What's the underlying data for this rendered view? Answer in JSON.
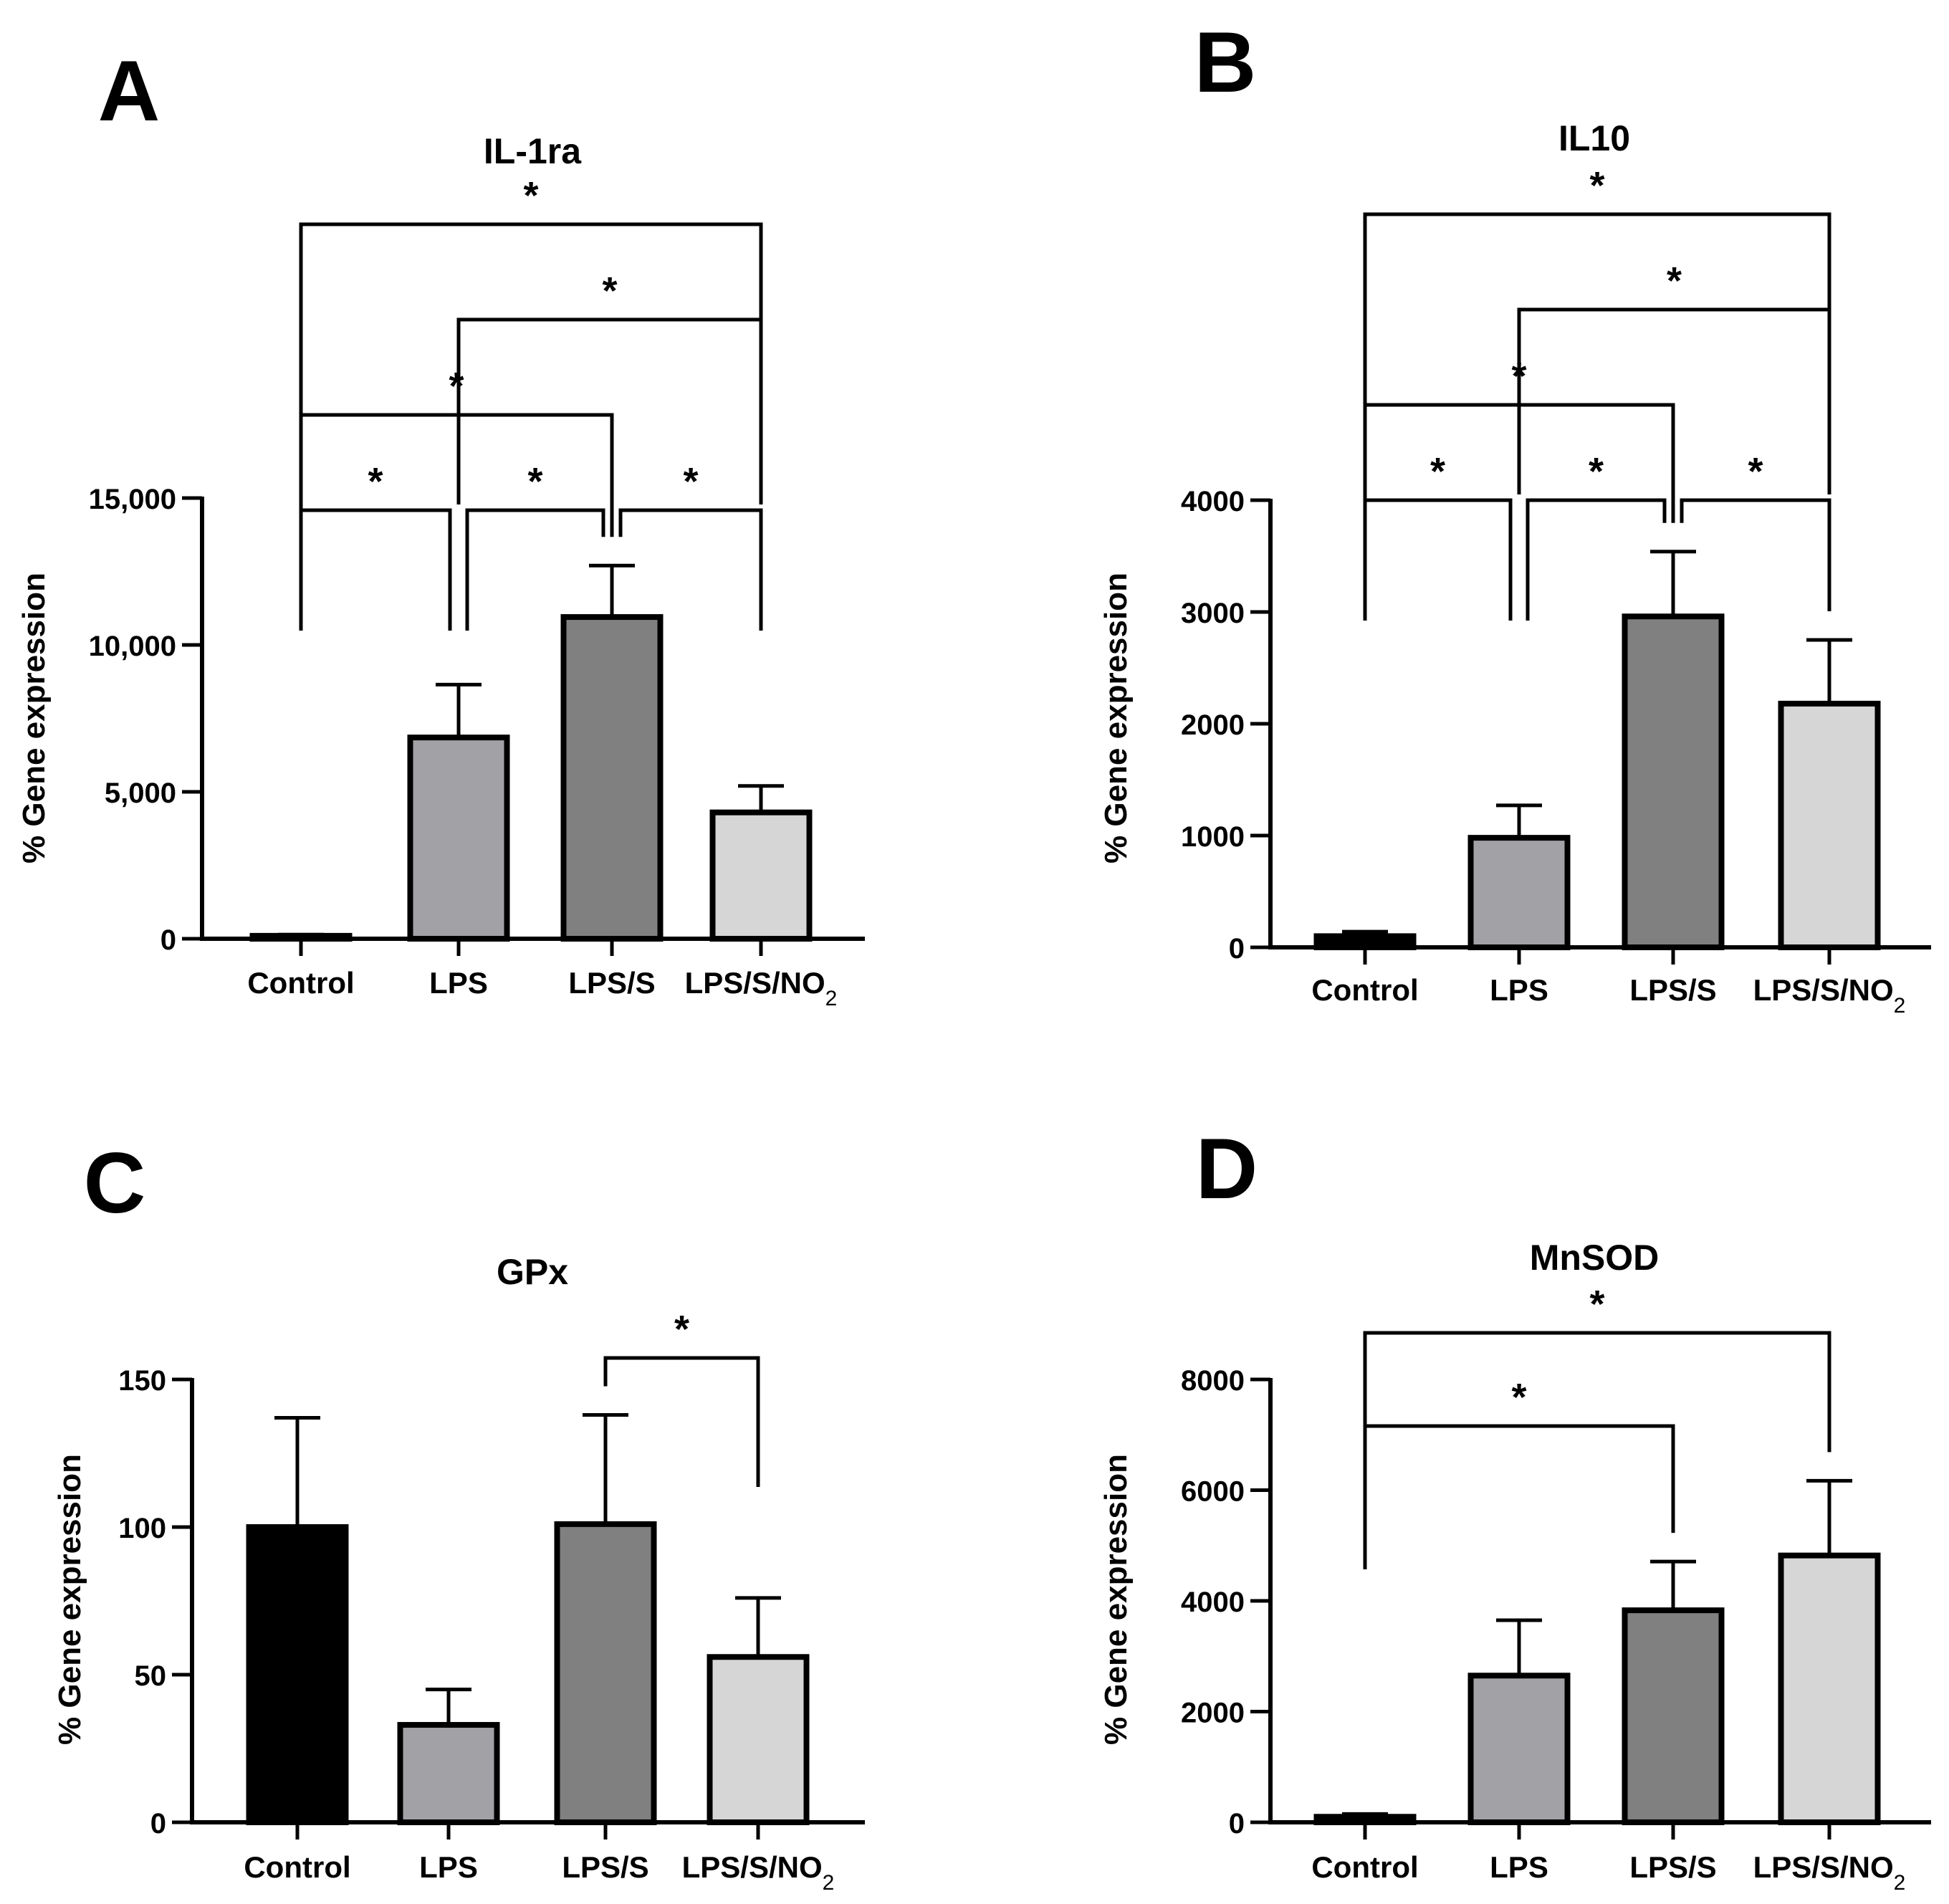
{
  "chart_data": [
    {
      "type": "bar",
      "panel_letter": "A",
      "title": "IL-1ra",
      "ylabel": "% Gene expression",
      "categories": [
        "Control",
        "LPS",
        "LPS/S",
        "LPS/S/NO2"
      ],
      "values": [
        100,
        6850,
        10950,
        4300
      ],
      "errors": [
        40,
        1800,
        1750,
        900
      ],
      "ylim": [
        0,
        15000
      ],
      "yticks": [
        0,
        5000,
        10000,
        15000
      ],
      "ytick_labels": [
        "0",
        "5,000",
        "10,000",
        "15,000"
      ],
      "bar_colors": [
        "#000000",
        "#a2a2a6",
        "#808080",
        "#d6d6d6"
      ],
      "significance": [
        {
          "from": 0,
          "to": 1,
          "label": "*"
        },
        {
          "from": 1,
          "to": 2,
          "label": "*"
        },
        {
          "from": 2,
          "to": 3,
          "label": "*"
        },
        {
          "from": 0,
          "to": 2,
          "label": "*"
        },
        {
          "from": 1,
          "to": 3,
          "label": "*"
        },
        {
          "from": 0,
          "to": 3,
          "label": "*"
        }
      ]
    },
    {
      "type": "bar",
      "panel_letter": "B",
      "title": "IL10",
      "ylabel": "% Gene expression",
      "categories": [
        "Control",
        "LPS",
        "LPS/S",
        "LPS/S/NO2"
      ],
      "values": [
        100,
        980,
        2960,
        2180
      ],
      "errors": [
        40,
        290,
        580,
        570
      ],
      "ylim": [
        0,
        4000
      ],
      "yticks": [
        0,
        1000,
        2000,
        3000,
        4000
      ],
      "ytick_labels": [
        "0",
        "1000",
        "2000",
        "3000",
        "4000"
      ],
      "bar_colors": [
        "#000000",
        "#a2a2a6",
        "#808080",
        "#d6d6d6"
      ],
      "significance": [
        {
          "from": 0,
          "to": 1,
          "label": "*"
        },
        {
          "from": 1,
          "to": 2,
          "label": "*"
        },
        {
          "from": 2,
          "to": 3,
          "label": "*"
        },
        {
          "from": 0,
          "to": 2,
          "label": "*"
        },
        {
          "from": 1,
          "to": 3,
          "label": "*"
        },
        {
          "from": 0,
          "to": 3,
          "label": "*"
        }
      ]
    },
    {
      "type": "bar",
      "panel_letter": "C",
      "title": "GPx",
      "ylabel": "% Gene expression",
      "categories": [
        "Control",
        "LPS",
        "LPS/S",
        "LPS/S/NO2"
      ],
      "values": [
        100,
        33,
        101,
        56
      ],
      "errors": [
        37,
        12,
        37,
        20
      ],
      "ylim": [
        0,
        150
      ],
      "yticks": [
        0,
        50,
        100,
        150
      ],
      "ytick_labels": [
        "0",
        "50",
        "100",
        "150"
      ],
      "bar_colors": [
        "#000000",
        "#a2a2a6",
        "#808080",
        "#d6d6d6"
      ],
      "significance": [
        {
          "from": 2,
          "to": 3,
          "label": "*"
        }
      ]
    },
    {
      "type": "bar",
      "panel_letter": "D",
      "title": "MnSOD",
      "ylabel": "% Gene expression",
      "categories": [
        "Control",
        "LPS",
        "LPS/S",
        "LPS/S/NO2"
      ],
      "values": [
        100,
        2650,
        3830,
        4820
      ],
      "errors": [
        50,
        1000,
        880,
        1350
      ],
      "ylim": [
        0,
        8000
      ],
      "yticks": [
        0,
        2000,
        4000,
        6000,
        8000
      ],
      "ytick_labels": [
        "0",
        "2000",
        "4000",
        "6000",
        "8000"
      ],
      "bar_colors": [
        "#000000",
        "#a2a2a6",
        "#808080",
        "#d6d6d6"
      ],
      "significance": [
        {
          "from": 0,
          "to": 2,
          "label": "*"
        },
        {
          "from": 0,
          "to": 3,
          "label": "*"
        }
      ]
    }
  ]
}
